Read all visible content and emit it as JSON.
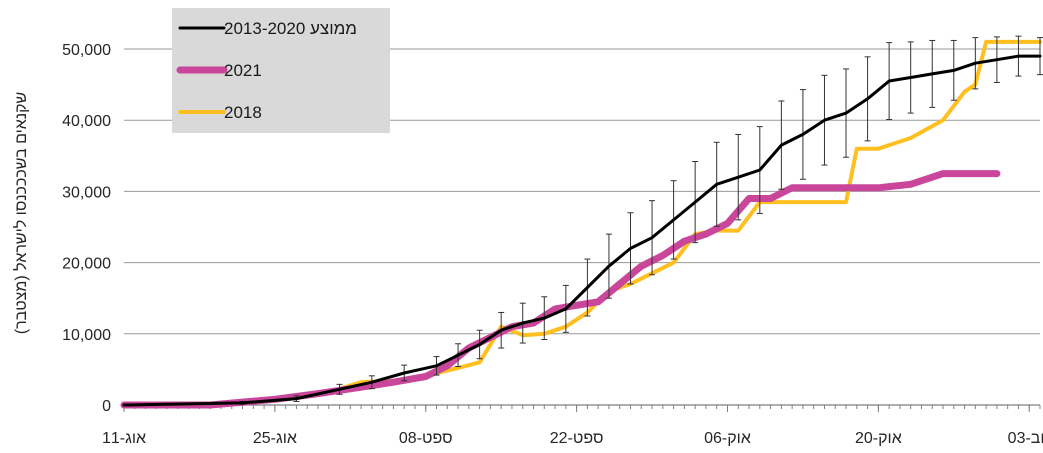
{
  "chart_data": {
    "type": "line",
    "ylabel": "שקנאים בשכככנסו לישראל (מצטבר)",
    "ylim": [
      0,
      50000
    ],
    "yticks": [
      {
        "value": 0,
        "label": "0"
      },
      {
        "value": 10000,
        "label": "10,000"
      },
      {
        "value": 20000,
        "label": "20,000"
      },
      {
        "value": 30000,
        "label": "30,000"
      },
      {
        "value": 40000,
        "label": "40,000"
      },
      {
        "value": 50000,
        "label": "50,000"
      }
    ],
    "xticks": [
      {
        "value": "2021-08-11",
        "label": "11-אוג"
      },
      {
        "value": "2021-08-25",
        "label": "25-אוג"
      },
      {
        "value": "2021-09-08",
        "label": "08-ספט"
      },
      {
        "value": "2021-09-22",
        "label": "22-ספט"
      },
      {
        "value": "2021-10-06",
        "label": "06-אוק"
      },
      {
        "value": "2021-10-20",
        "label": "20-אוק"
      },
      {
        "value": "2021-11-03",
        "label": "03-נוב"
      }
    ],
    "xlim": [
      "2021-08-11",
      "2021-11-04"
    ],
    "grid": "horizontal",
    "legend_placement": "top-left",
    "series": [
      {
        "name": "ממוצע 2013-2020",
        "color": "#000000",
        "x": [
          "2021-08-11",
          "2021-08-22",
          "2021-08-27",
          "2021-08-31",
          "2021-09-03",
          "2021-09-06",
          "2021-09-09",
          "2021-09-11",
          "2021-09-13",
          "2021-09-15",
          "2021-09-17",
          "2021-09-19",
          "2021-09-21",
          "2021-09-23",
          "2021-09-25",
          "2021-09-27",
          "2021-09-29",
          "2021-10-01",
          "2021-10-03",
          "2021-10-05",
          "2021-10-07",
          "2021-10-09",
          "2021-10-11",
          "2021-10-13",
          "2021-10-15",
          "2021-10-17",
          "2021-10-19",
          "2021-10-21",
          "2021-10-23",
          "2021-10-25",
          "2021-10-27",
          "2021-10-29",
          "2021-10-31",
          "2021-11-02",
          "2021-11-04"
        ],
        "values": [
          0,
          300,
          900,
          2200,
          3200,
          4500,
          5500,
          7000,
          8500,
          10500,
          11500,
          12200,
          13500,
          16500,
          19500,
          22000,
          23500,
          26000,
          28500,
          31000,
          32000,
          33000,
          36500,
          38000,
          40000,
          41000,
          43000,
          45500,
          46000,
          46500,
          47000,
          48000,
          48500,
          49000,
          49000
        ],
        "errors": [
          0,
          200,
          400,
          700,
          900,
          1100,
          1300,
          1600,
          2000,
          2500,
          2800,
          3000,
          3300,
          4000,
          4500,
          5000,
          5200,
          5500,
          5700,
          5900,
          6000,
          6100,
          6200,
          6300,
          6300,
          6200,
          5900,
          5400,
          5000,
          4700,
          4200,
          3600,
          3200,
          2800,
          2600
        ]
      },
      {
        "name": "2021",
        "color": "#c9469b",
        "x": [
          "2021-08-11",
          "2021-08-19",
          "2021-08-25",
          "2021-08-29",
          "2021-09-02",
          "2021-09-05",
          "2021-09-08",
          "2021-09-10",
          "2021-09-12",
          "2021-09-14",
          "2021-09-16",
          "2021-09-18",
          "2021-09-20",
          "2021-09-22",
          "2021-09-24",
          "2021-09-26",
          "2021-09-28",
          "2021-09-30",
          "2021-10-02",
          "2021-10-04",
          "2021-10-06",
          "2021-10-08",
          "2021-10-10",
          "2021-10-12",
          "2021-10-16",
          "2021-10-20",
          "2021-10-23",
          "2021-10-26",
          "2021-10-29",
          "2021-10-31"
        ],
        "values": [
          0,
          0,
          800,
          1600,
          2500,
          3200,
          4000,
          5500,
          8000,
          9500,
          11000,
          11500,
          13500,
          14000,
          14500,
          17000,
          19500,
          21000,
          23000,
          24000,
          25500,
          29000,
          29000,
          30500,
          30500,
          30500,
          31000,
          32500,
          32500,
          32500
        ]
      },
      {
        "name": "2018",
        "color": "#ffbf1f",
        "x": [
          "2021-08-11",
          "2021-08-19",
          "2021-08-23",
          "2021-08-26",
          "2021-08-30",
          "2021-09-02",
          "2021-09-06",
          "2021-09-09",
          "2021-09-11",
          "2021-09-13",
          "2021-09-15",
          "2021-09-17",
          "2021-09-19",
          "2021-09-21",
          "2021-09-23",
          "2021-09-25",
          "2021-09-27",
          "2021-09-29",
          "2021-10-01",
          "2021-10-03",
          "2021-10-05",
          "2021-10-07",
          "2021-10-09",
          "2021-10-11",
          "2021-10-14",
          "2021-10-17",
          "2021-10-18",
          "2021-10-20",
          "2021-10-23",
          "2021-10-26",
          "2021-10-28",
          "2021-10-29",
          "2021-10-30",
          "2021-11-01",
          "2021-11-04"
        ],
        "values": [
          0,
          0,
          500,
          1000,
          1800,
          3200,
          3500,
          4500,
          5200,
          6000,
          11000,
          9800,
          10000,
          11000,
          13000,
          16000,
          17000,
          18500,
          20000,
          24000,
          24500,
          24500,
          28500,
          28500,
          28500,
          28500,
          36000,
          36000,
          37500,
          40000,
          44000,
          45000,
          51000,
          51000,
          51000
        ]
      }
    ]
  }
}
